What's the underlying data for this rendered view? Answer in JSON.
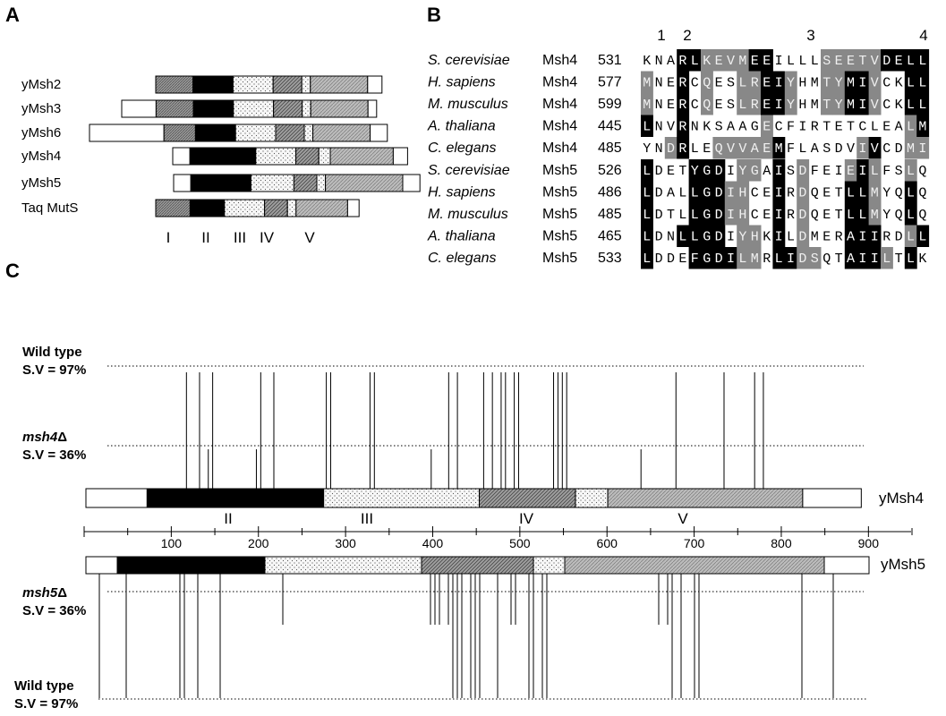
{
  "colors": {
    "domain_I": "#8c8c8c",
    "domain_II": "#000000",
    "domain_III": "#f2f2f2",
    "domain_IV": "#8a8a8a",
    "domain_V": "#b0b0b0",
    "dark_shade": "#000000",
    "grey_shade": "#888888"
  },
  "panelA": {
    "letter": "A",
    "proteins": [
      {
        "label": "yMsh2",
        "segments": [
          [
            "I",
            0,
            13
          ],
          [
            "II",
            13,
            27
          ],
          [
            "III",
            27,
            41
          ],
          [
            "IV",
            41,
            51
          ],
          [
            "III",
            51,
            54
          ],
          [
            "V",
            54,
            74
          ],
          [
            "end",
            74,
            79
          ]
        ]
      },
      {
        "label": "yMsh3",
        "segments": [
          [
            "end",
            0,
            12
          ],
          [
            "I",
            12,
            25
          ],
          [
            "II",
            25,
            39
          ],
          [
            "III",
            39,
            53
          ],
          [
            "IV",
            53,
            63
          ],
          [
            "III",
            63,
            66
          ],
          [
            "V",
            66,
            86
          ],
          [
            "end",
            86,
            89
          ]
        ]
      },
      {
        "label": "yMsh6",
        "segments": [
          [
            "end",
            0,
            26
          ],
          [
            "I",
            26,
            37
          ],
          [
            "II",
            37,
            51
          ],
          [
            "III",
            51,
            65
          ],
          [
            "IV",
            65,
            75
          ],
          [
            "III",
            75,
            78
          ],
          [
            "V",
            78,
            98
          ],
          [
            "end",
            98,
            104
          ]
        ]
      },
      {
        "label": "yMsh4",
        "segments": [
          [
            "end",
            0,
            6
          ],
          [
            "II",
            6,
            29
          ],
          [
            "III",
            29,
            43
          ],
          [
            "IV",
            43,
            51
          ],
          [
            "III",
            51,
            55
          ],
          [
            "V",
            55,
            77
          ],
          [
            "end",
            77,
            82
          ]
        ]
      },
      {
        "label": "yMsh5",
        "segments": [
          [
            "end",
            0,
            6
          ],
          [
            "II",
            6,
            27
          ],
          [
            "III",
            27,
            42
          ],
          [
            "IV",
            42,
            50
          ],
          [
            "III",
            50,
            53
          ],
          [
            "V",
            53,
            80
          ],
          [
            "end",
            80,
            86
          ]
        ]
      },
      {
        "label": "Taq MutS",
        "segments": [
          [
            "I",
            0,
            12
          ],
          [
            "II",
            12,
            24
          ],
          [
            "III",
            24,
            38
          ],
          [
            "IV",
            38,
            46
          ],
          [
            "III",
            46,
            49
          ],
          [
            "V",
            49,
            67
          ],
          [
            "end",
            67,
            71
          ]
        ]
      }
    ],
    "domains": [
      "I",
      "II",
      "III",
      "IV",
      "V"
    ]
  },
  "panelB": {
    "letter": "B",
    "motif_numbers": [
      "1",
      "2",
      "3",
      "4"
    ],
    "msh4": [
      {
        "species": "S. cerevisiae",
        "gene": "Msh4",
        "pos": "531",
        "seq": "KNARLKEVMEEILLLSEETVDELL",
        "shade": "wwwbbggggbbwwwwgggggbbbb"
      },
      {
        "species": "H. sapiens",
        "gene": "Msh4",
        "pos": "577",
        "seq": "MNERCQESLREIYHMTYMIVCKLL",
        "shade": "gwwbwgwwggbbgwwggbbgwwbb"
      },
      {
        "species": "M. musculus",
        "gene": "Msh4",
        "pos": "599",
        "seq": "MNERCQESLREIYHMTYMIVCKLL",
        "shade": "gwwbwgwwggbbgwwggbbgwwbb"
      },
      {
        "species": "A. thaliana",
        "gene": "Msh4",
        "pos": "445",
        "seq": "LNVRNKSAAGECFIRTETCLEALM",
        "shade": "bwwbwwwwwwgwwwwwwwwwwwgb"
      },
      {
        "species": "C. elegans",
        "gene": "Msh4",
        "pos": "485",
        "seq": "YNDRLEQVVAEMFLASDVIVCDMI",
        "shade": "wwgbwwgggggbwwwwwwgbwwgg"
      }
    ],
    "msh5": [
      {
        "species": "S. cerevisiae",
        "gene": "Msh5",
        "pos": "526",
        "seq": "LDETYGDIYGAISDFEIEILFSLQ",
        "shade": "bwwwbbbwggwbwgwwwgbgwwgw"
      },
      {
        "species": "H. sapiens",
        "gene": "Msh5",
        "pos": "486",
        "seq": "LDALLGDIHCEIRDQETLLMYQLQ",
        "shade": "bwwwbbbggwwbwgwwwbbgwwbw"
      },
      {
        "species": "M. musculus",
        "gene": "Msh5",
        "pos": "485",
        "seq": "LDTLLGDIHCEIRDQETLLMYQLQ",
        "shade": "bwwwbbbggwwbwgwwwbbgwwbw"
      },
      {
        "species": "A. thaliana",
        "gene": "Msh5",
        "pos": "465",
        "seq": "LDNLLGDIYHKILDMERAIIRDLL",
        "shade": "bwwbbbbwggwbwgwwwbbbwwgb"
      },
      {
        "species": "C. elegans",
        "gene": "Msh5",
        "pos": "533",
        "seq": "LDDEFGDILMRLIDSQTAIILTLK",
        "shade": "bwwwbbbbggwbbggwwbbbgwbw"
      }
    ]
  },
  "panelC": {
    "letter": "C",
    "wild_type_label": "Wild type",
    "wt_sv": "S.V = 97%",
    "msh4_label": "msh4",
    "delta": "Δ",
    "mut_sv": "S.V = 36%",
    "msh5_label": "msh5",
    "yMsh4_label": "yMsh4",
    "yMsh5_label": "yMsh5",
    "axis_ticks": [
      "100",
      "200",
      "300",
      "400",
      "500",
      "600",
      "700",
      "800",
      "900"
    ],
    "msh4_domains": [
      [
        "end",
        0,
        70
      ],
      [
        "II",
        70,
        272
      ],
      [
        "III",
        272,
        450
      ],
      [
        "IV",
        450,
        560
      ],
      [
        "III",
        560,
        597
      ],
      [
        "V",
        597,
        820
      ],
      [
        "end",
        820,
        887
      ]
    ],
    "msh5_domains": [
      [
        "end",
        0,
        35
      ],
      [
        "II",
        35,
        200
      ],
      [
        "III",
        200,
        375
      ],
      [
        "IV",
        375,
        500
      ],
      [
        "III",
        500,
        535
      ],
      [
        "V",
        535,
        825
      ],
      [
        "end",
        825,
        875
      ]
    ],
    "msh4_wt_lines": [
      115,
      130,
      145,
      200,
      215,
      275,
      280,
      325,
      330,
      415,
      425,
      455,
      465,
      475,
      480,
      490,
      495,
      535,
      540,
      545,
      550,
      675,
      730,
      765,
      775
    ],
    "msh4_mut_lines": [
      140,
      195,
      395,
      635
    ],
    "msh5_wt_lines": [
      15,
      45,
      105,
      110,
      125,
      150,
      410,
      415,
      420,
      430,
      435,
      440,
      460,
      495,
      500,
      510,
      515,
      655,
      665,
      680,
      685,
      800,
      835
    ],
    "msh5_mut_lines": [
      220,
      385,
      390,
      395,
      405,
      410,
      475,
      480,
      640,
      650
    ]
  }
}
